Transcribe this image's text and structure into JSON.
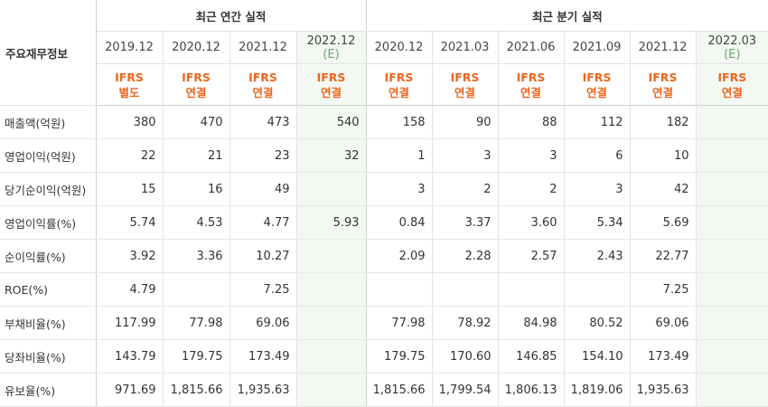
{
  "header": {
    "main_label": "주요재무정보",
    "annual_title": "최근 연간 실적",
    "quarter_title": "최근 분기 실적"
  },
  "periods": [
    {
      "date": "2019.12",
      "est": "",
      "acc1": "IFRS",
      "acc2": "별도",
      "estimate": false
    },
    {
      "date": "2020.12",
      "est": "",
      "acc1": "IFRS",
      "acc2": "연결",
      "estimate": false
    },
    {
      "date": "2021.12",
      "est": "",
      "acc1": "IFRS",
      "acc2": "연결",
      "estimate": false
    },
    {
      "date": "2022.12",
      "est": "(E)",
      "acc1": "IFRS",
      "acc2": "연결",
      "estimate": true
    },
    {
      "date": "2020.12",
      "est": "",
      "acc1": "IFRS",
      "acc2": "연결",
      "estimate": false
    },
    {
      "date": "2021.03",
      "est": "",
      "acc1": "IFRS",
      "acc2": "연결",
      "estimate": false
    },
    {
      "date": "2021.06",
      "est": "",
      "acc1": "IFRS",
      "acc2": "연결",
      "estimate": false
    },
    {
      "date": "2021.09",
      "est": "",
      "acc1": "IFRS",
      "acc2": "연결",
      "estimate": false
    },
    {
      "date": "2021.12",
      "est": "",
      "acc1": "IFRS",
      "acc2": "연결",
      "estimate": false
    },
    {
      "date": "2022.03",
      "est": "(E)",
      "acc1": "IFRS",
      "acc2": "연결",
      "estimate": true
    }
  ],
  "rows": [
    {
      "label": "매출액(억원)",
      "values": [
        "380",
        "470",
        "473",
        "540",
        "158",
        "90",
        "88",
        "112",
        "182",
        ""
      ]
    },
    {
      "label": "영업이익(억원)",
      "values": [
        "22",
        "21",
        "23",
        "32",
        "1",
        "3",
        "3",
        "6",
        "10",
        ""
      ]
    },
    {
      "label": "당기순이익(억원)",
      "values": [
        "15",
        "16",
        "49",
        "",
        "3",
        "2",
        "2",
        "3",
        "42",
        ""
      ]
    },
    {
      "label": "영업이익률(%)",
      "values": [
        "5.74",
        "4.53",
        "4.77",
        "5.93",
        "0.84",
        "3.37",
        "3.60",
        "5.34",
        "5.69",
        ""
      ]
    },
    {
      "label": "순이익률(%)",
      "values": [
        "3.92",
        "3.36",
        "10.27",
        "",
        "2.09",
        "2.28",
        "2.57",
        "2.43",
        "22.77",
        ""
      ]
    },
    {
      "label": "ROE(%)",
      "values": [
        "4.79",
        "",
        "7.25",
        "",
        "",
        "",
        "",
        "",
        "7.25",
        ""
      ]
    },
    {
      "label": "부채비율(%)",
      "values": [
        "117.99",
        "77.98",
        "69.06",
        "",
        "77.98",
        "78.92",
        "84.98",
        "80.52",
        "69.06",
        ""
      ]
    },
    {
      "label": "당좌비율(%)",
      "values": [
        "143.79",
        "179.75",
        "173.49",
        "",
        "179.75",
        "170.60",
        "146.85",
        "154.10",
        "173.49",
        ""
      ]
    },
    {
      "label": "유보율(%)",
      "values": [
        "971.69",
        "1,815.66",
        "1,935.63",
        "",
        "1,815.66",
        "1,799.54",
        "1,806.13",
        "1,819.06",
        "1,935.63",
        ""
      ]
    }
  ]
}
